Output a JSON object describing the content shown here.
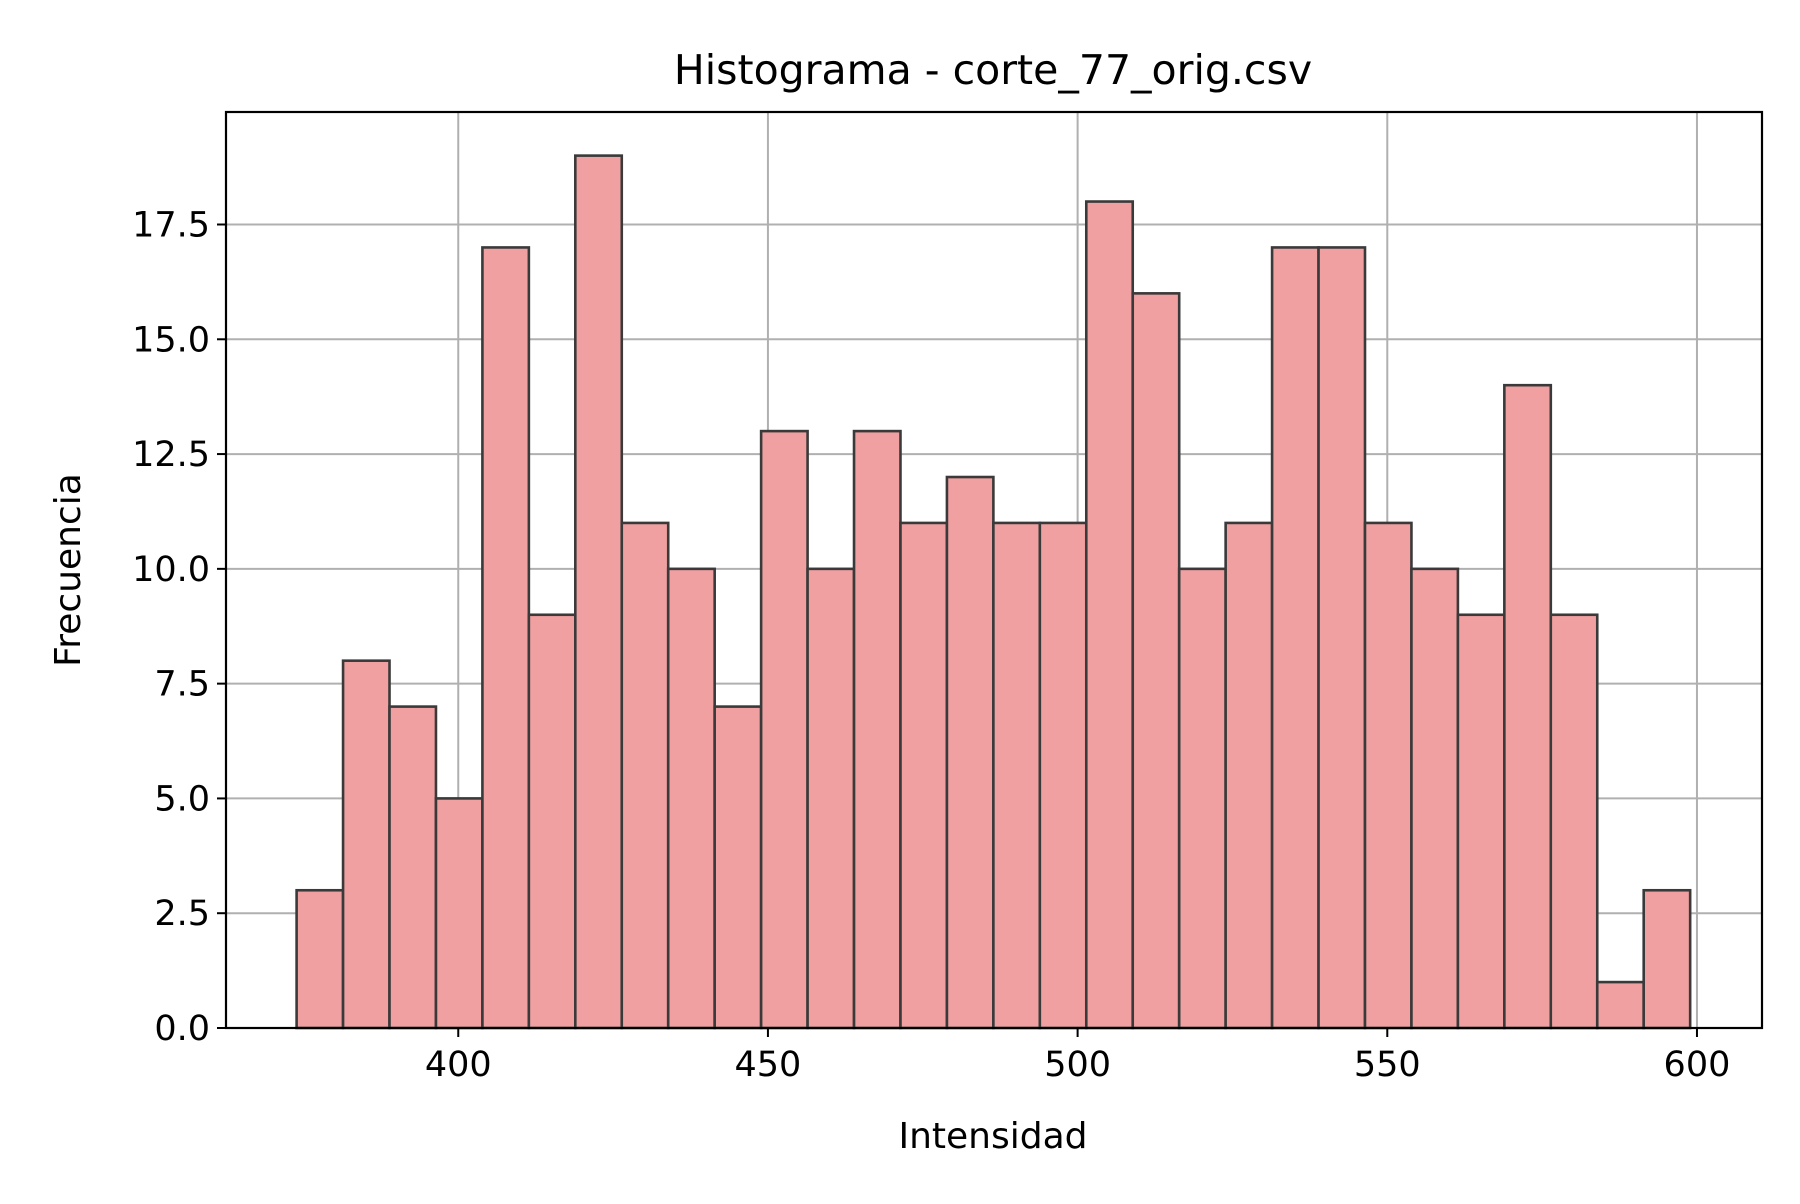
{
  "chart_data": {
    "type": "bar",
    "title": "Histograma - corte_77_orig.csv",
    "xlabel": "Intensidad",
    "ylabel": "Frecuencia",
    "xlim": [
      362.5,
      610.5
    ],
    "ylim": [
      0,
      19.95
    ],
    "xticks": [
      400,
      450,
      500,
      550,
      600
    ],
    "xtick_labels": [
      "400",
      "450",
      "500",
      "550",
      "600"
    ],
    "yticks": [
      0,
      2.5,
      5,
      7.5,
      10,
      12.5,
      15,
      17.5
    ],
    "ytick_labels": [
      "0.0",
      "2.5",
      "5.0",
      "7.5",
      "10.0",
      "12.5",
      "15.0",
      "17.5"
    ],
    "grid": true,
    "bin_start": 373.9,
    "bin_width": 7.5,
    "values": [
      3,
      8,
      7,
      5,
      17,
      9,
      19,
      11,
      10,
      7,
      13,
      10,
      13,
      11,
      12,
      11,
      11,
      18,
      16,
      10,
      11,
      17,
      17,
      11,
      10,
      9,
      14,
      9,
      1,
      3
    ],
    "bar_color": "#f0a0a0",
    "edge_color": "#3a3a3a",
    "grid_color": "#b0b0b0"
  }
}
